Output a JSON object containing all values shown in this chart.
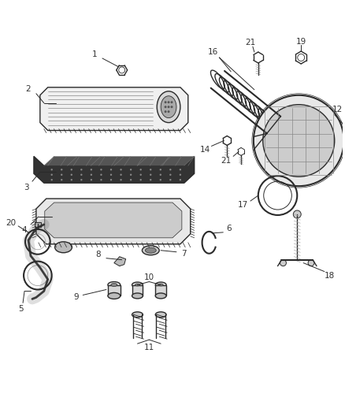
{
  "bg_color": "#ffffff",
  "fig_width": 4.38,
  "fig_height": 5.33,
  "dpi": 100,
  "line_color": "#2a2a2a",
  "label_color": "#333333",
  "label_fontsize": 7.5
}
